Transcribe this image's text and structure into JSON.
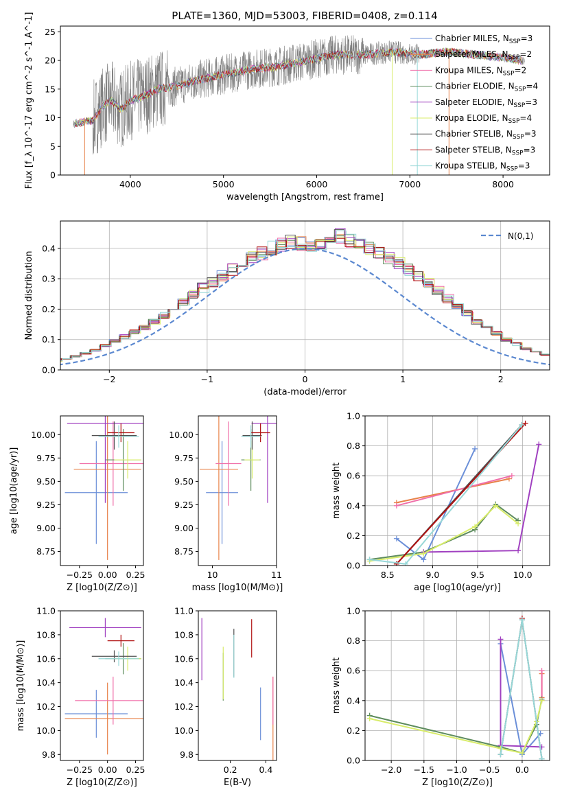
{
  "title": "PLATE=1360, MJD=53003, FIBERID=0408, z=0.114",
  "colors": {
    "chabrier_miles": "#6b8fd8",
    "salpeter_miles": "#e8824a",
    "kroupa_miles": "#f06ea9",
    "chabrier_elodie": "#5e8c5e",
    "salpeter_elodie": "#a040c0",
    "kroupa_elodie": "#d8ec6a",
    "chabrier_stelib": "#505050",
    "salpeter_stelib": "#b01010",
    "kroupa_stelib": "#98d8d8",
    "data": "#808080",
    "normal": "#5b88d0"
  },
  "chart_data": [
    {
      "id": "spectrum",
      "type": "line",
      "xlabel": "wavelength [Angstrom, rest frame]",
      "ylabel": "Flux [f_λ 10^-17 erg cm^-2 s^-1 A^-1]",
      "xlim": [
        3250,
        8500
      ],
      "ylim": [
        0,
        26
      ],
      "xticks": [
        4000,
        5000,
        6000,
        7000,
        8000
      ],
      "yticks": [
        0,
        5,
        10,
        15,
        20,
        25
      ],
      "legend_position": "top-right",
      "continuum": {
        "x": [
          3400,
          3600,
          3700,
          3800,
          3900,
          4000,
          4100,
          4300,
          4500,
          4700,
          5000,
          5300,
          5600,
          5900,
          6200,
          6500,
          6800,
          7100,
          7400,
          7700,
          8000,
          8200
        ],
        "y": [
          9,
          9.5,
          12,
          13,
          11.5,
          13,
          13.5,
          15,
          15.5,
          16.5,
          17.5,
          18.5,
          19,
          20,
          21,
          21,
          21.5,
          21,
          21.5,
          21,
          20.5,
          20
        ]
      },
      "series": [
        {
          "name": "Chabrier MILES, N_SSP=3",
          "label_main": "Chabrier MILES, N",
          "label_sub": "SSP",
          "label_tail": "=3",
          "color": "#6b8fd8"
        },
        {
          "name": "Salpeter MILES, N_SSP=2",
          "label_main": "Salpeter MILES, N",
          "label_sub": "SSP",
          "label_tail": "=2",
          "color": "#e8824a"
        },
        {
          "name": "Kroupa MILES, N_SSP=2",
          "label_main": "Kroupa MILES, N",
          "label_sub": "SSP",
          "label_tail": "=2",
          "color": "#f06ea9"
        },
        {
          "name": "Chabrier ELODIE, N_SSP=4",
          "label_main": "Chabrier ELODIE, N",
          "label_sub": "SSP",
          "label_tail": "=4",
          "color": "#5e8c5e"
        },
        {
          "name": "Salpeter ELODIE, N_SSP=3",
          "label_main": "Salpeter ELODIE, N",
          "label_sub": "SSP",
          "label_tail": "=3",
          "color": "#a040c0"
        },
        {
          "name": "Kroupa ELODIE, N_SSP=4",
          "label_main": "Kroupa ELODIE, N",
          "label_sub": "SSP",
          "label_tail": "=4",
          "color": "#d8ec6a"
        },
        {
          "name": "Chabrier STELIB, N_SSP=3",
          "label_main": "Chabrier STELIB, N",
          "label_sub": "SSP",
          "label_tail": "=3",
          "color": "#505050"
        },
        {
          "name": "Salpeter STELIB, N_SSP=3",
          "label_main": "Salpeter STELIB, N",
          "label_sub": "SSP",
          "label_tail": "=3",
          "color": "#b01010"
        },
        {
          "name": "Kroupa STELIB, N_SSP=3",
          "label_main": "Kroupa STELIB, N",
          "label_sub": "SSP",
          "label_tail": "=3",
          "color": "#98d8d8"
        }
      ]
    },
    {
      "id": "residuals",
      "type": "area",
      "xlabel": "(data-model)/error",
      "ylabel": "Normed distribution",
      "xlim": [
        -2.5,
        2.5
      ],
      "ylim": [
        0,
        0.49
      ],
      "xticks": [
        -2,
        -1,
        0,
        1,
        2
      ],
      "yticks": [
        0.0,
        0.1,
        0.2,
        0.3,
        0.4
      ],
      "grid": true,
      "legend_position": "top-right",
      "legend": "N(0,1)",
      "bin_width": 0.1,
      "histogram_heights": [
        0.015,
        0.02,
        0.025,
        0.03,
        0.035,
        0.045,
        0.055,
        0.065,
        0.08,
        0.095,
        0.11,
        0.125,
        0.14,
        0.16,
        0.18,
        0.2,
        0.225,
        0.25,
        0.27,
        0.29,
        0.31,
        0.33,
        0.35,
        0.37,
        0.385,
        0.4,
        0.41,
        0.42,
        0.415,
        0.41,
        0.42,
        0.43,
        0.44,
        0.425,
        0.41,
        0.4,
        0.385,
        0.37,
        0.35,
        0.33,
        0.31,
        0.285,
        0.26,
        0.235,
        0.21,
        0.185,
        0.16,
        0.14,
        0.12,
        0.1,
        0.085,
        0.07,
        0.06,
        0.05,
        0.04,
        0.032,
        0.025,
        0.02
      ]
    },
    {
      "id": "age_vs_Z",
      "type": "scatter",
      "xlabel": "Z [log10(Z/Z⊙)]",
      "ylabel": "age [log10(age/yr)]",
      "xlim": [
        -0.42,
        0.32
      ],
      "ylim": [
        8.6,
        10.2
      ],
      "xticks": [
        -0.25,
        0.0,
        0.25
      ],
      "yticks": [
        8.75,
        9.0,
        9.25,
        9.5,
        9.75,
        10.0
      ],
      "points": [
        {
          "x": -0.1,
          "xerr": 0.28,
          "y": 9.38,
          "yerr": 0.55,
          "color": "#6b8fd8"
        },
        {
          "x": 0.0,
          "xerr": 0.3,
          "y": 9.63,
          "yerr": 0.97,
          "color": "#e8824a"
        },
        {
          "x": 0.05,
          "xerr": 0.3,
          "y": 9.69,
          "yerr": 0.45,
          "color": "#f06ea9"
        },
        {
          "x": 0.14,
          "xerr": 0.16,
          "y": 9.73,
          "yerr": 0.33,
          "color": "#5e8c5e"
        },
        {
          "x": -0.02,
          "xerr": 0.34,
          "y": 10.12,
          "yerr": 0.85,
          "color": "#a040c0"
        },
        {
          "x": 0.18,
          "xerr": 0.12,
          "y": 9.73,
          "yerr": 0.2,
          "color": "#d8ec6a"
        },
        {
          "x": 0.06,
          "xerr": 0.2,
          "y": 9.99,
          "yerr": 0.15,
          "color": "#505050"
        },
        {
          "x": 0.12,
          "xerr": 0.12,
          "y": 10.02,
          "yerr": 0.1,
          "color": "#b01010"
        },
        {
          "x": 0.1,
          "xerr": 0.18,
          "y": 9.98,
          "yerr": 0.12,
          "color": "#98d8d8"
        }
      ]
    },
    {
      "id": "age_vs_mass",
      "type": "scatter",
      "xlabel": "mass [log10(M/M⊙)]",
      "ylabel": "",
      "xlim": [
        9.78,
        11.0
      ],
      "ylim": [
        8.6,
        10.2
      ],
      "xticks": [
        10,
        11
      ],
      "yticks": [
        8.75,
        9.0,
        9.25,
        9.5,
        9.75,
        10.0
      ],
      "points": [
        {
          "x": 10.15,
          "xerr": 0.25,
          "y": 9.38,
          "yerr": 0.55,
          "color": "#6b8fd8"
        },
        {
          "x": 10.1,
          "xerr": 0.3,
          "y": 9.63,
          "yerr": 0.97,
          "color": "#e8824a"
        },
        {
          "x": 10.25,
          "xerr": 0.2,
          "y": 9.69,
          "yerr": 0.45,
          "color": "#f06ea9"
        },
        {
          "x": 10.6,
          "xerr": 0.15,
          "y": 9.73,
          "yerr": 0.33,
          "color": "#5e8c5e"
        },
        {
          "x": 10.86,
          "xerr": 0.25,
          "y": 10.12,
          "yerr": 0.85,
          "color": "#a040c0"
        },
        {
          "x": 10.62,
          "xerr": 0.12,
          "y": 9.73,
          "yerr": 0.2,
          "color": "#d8ec6a"
        },
        {
          "x": 10.62,
          "xerr": 0.15,
          "y": 9.99,
          "yerr": 0.15,
          "color": "#505050"
        },
        {
          "x": 10.75,
          "xerr": 0.15,
          "y": 10.02,
          "yerr": 0.1,
          "color": "#b01010"
        },
        {
          "x": 10.6,
          "xerr": 0.15,
          "y": 9.98,
          "yerr": 0.12,
          "color": "#98d8d8"
        }
      ]
    },
    {
      "id": "weight_vs_age",
      "type": "line",
      "xlabel": "age [log10(age/yr)]",
      "ylabel": "mass weight",
      "xlim": [
        8.25,
        10.3
      ],
      "ylim": [
        0,
        1
      ],
      "xticks": [
        8.5,
        9.0,
        9.5,
        10.0
      ],
      "yticks": [
        0.0,
        0.2,
        0.4,
        0.6,
        0.8,
        1.0
      ],
      "grid": true,
      "series": [
        {
          "color": "#6b8fd8",
          "x": [
            8.6,
            8.9,
            9.47
          ],
          "y": [
            0.18,
            0.04,
            0.78
          ]
        },
        {
          "color": "#e8824a",
          "x": [
            8.6,
            9.85
          ],
          "y": [
            0.42,
            0.58
          ]
        },
        {
          "color": "#f06ea9",
          "x": [
            8.6,
            9.88
          ],
          "y": [
            0.4,
            0.6
          ]
        },
        {
          "color": "#5e8c5e",
          "x": [
            8.3,
            8.9,
            9.47,
            9.7,
            9.95
          ],
          "y": [
            0.04,
            0.09,
            0.24,
            0.41,
            0.3
          ]
        },
        {
          "color": "#a040c0",
          "x": [
            8.9,
            9.95,
            10.18
          ],
          "y": [
            0.09,
            0.1,
            0.81
          ]
        },
        {
          "color": "#d8ec6a",
          "x": [
            8.3,
            8.9,
            9.47,
            9.7,
            9.95
          ],
          "y": [
            0.03,
            0.08,
            0.26,
            0.4,
            0.28
          ]
        },
        {
          "color": "#505050",
          "x": [
            8.6,
            9.99
          ],
          "y": [
            0.01,
            0.94
          ]
        },
        {
          "color": "#b01010",
          "x": [
            8.6,
            10.03
          ],
          "y": [
            0.01,
            0.95
          ]
        },
        {
          "color": "#98d8d8",
          "x": [
            8.3,
            8.7,
            9.99
          ],
          "y": [
            0.04,
            0.01,
            0.94
          ]
        }
      ]
    },
    {
      "id": "mass_vs_Z",
      "type": "scatter",
      "xlabel": "Z [log10(Z/Z⊙)]",
      "ylabel": "mass [log10(M/M⊙)]",
      "xlim": [
        -0.42,
        0.32
      ],
      "ylim": [
        9.75,
        11.0
      ],
      "xticks": [
        -0.25,
        0.0,
        0.25
      ],
      "yticks": [
        9.8,
        10.0,
        10.2,
        10.4,
        10.6,
        10.8,
        11.0
      ],
      "points": [
        {
          "x": -0.1,
          "xerr": 0.28,
          "y": 10.14,
          "yerr": 0.2,
          "color": "#6b8fd8"
        },
        {
          "x": 0.0,
          "xerr": 0.38,
          "y": 10.1,
          "yerr": 0.3,
          "color": "#e8824a"
        },
        {
          "x": 0.05,
          "xerr": 0.34,
          "y": 10.25,
          "yerr": 0.2,
          "color": "#f06ea9"
        },
        {
          "x": 0.14,
          "xerr": 0.16,
          "y": 10.6,
          "yerr": 0.13,
          "color": "#5e8c5e"
        },
        {
          "x": -0.02,
          "xerr": 0.32,
          "y": 10.86,
          "yerr": 0.08,
          "color": "#a040c0"
        },
        {
          "x": 0.18,
          "xerr": 0.12,
          "y": 10.6,
          "yerr": 0.1,
          "color": "#d8ec6a"
        },
        {
          "x": 0.06,
          "xerr": 0.2,
          "y": 10.62,
          "yerr": 0.05,
          "color": "#505050"
        },
        {
          "x": 0.12,
          "xerr": 0.12,
          "y": 10.75,
          "yerr": 0.05,
          "color": "#b01010"
        },
        {
          "x": 0.1,
          "xerr": 0.18,
          "y": 10.6,
          "yerr": 0.06,
          "color": "#98d8d8"
        }
      ]
    },
    {
      "id": "mass_vs_ebv",
      "type": "scatter",
      "xlabel": "E(B-V)",
      "ylabel": "",
      "xlim": [
        0.02,
        0.46
      ],
      "ylim": [
        9.75,
        11.0
      ],
      "xticks": [
        0.2,
        0.4
      ],
      "yticks": [
        9.8,
        10.0,
        10.2,
        10.4,
        10.6,
        10.8,
        11.0
      ],
      "points": [
        {
          "x": 0.37,
          "y": 10.14,
          "yerr": 0.22,
          "color": "#6b8fd8"
        },
        {
          "x": 0.44,
          "y": 10.1,
          "yerr": 0.35,
          "color": "#e8824a"
        },
        {
          "x": 0.44,
          "y": 10.25,
          "yerr": 0.2,
          "color": "#f06ea9"
        },
        {
          "x": 0.16,
          "y": 10.45,
          "yerr": 0.2,
          "color": "#5e8c5e"
        },
        {
          "x": 0.04,
          "y": 10.68,
          "yerr": 0.26,
          "color": "#a040c0"
        },
        {
          "x": 0.16,
          "y": 10.48,
          "yerr": 0.22,
          "color": "#d8ec6a"
        },
        {
          "x": 0.22,
          "y": 10.65,
          "yerr": 0.2,
          "color": "#505050"
        },
        {
          "x": 0.32,
          "y": 10.77,
          "yerr": 0.16,
          "color": "#b01010"
        },
        {
          "x": 0.22,
          "y": 10.62,
          "yerr": 0.18,
          "color": "#98d8d8"
        }
      ]
    },
    {
      "id": "weight_vs_Z",
      "type": "line",
      "xlabel": "Z [log10(Z/Z⊙)]",
      "ylabel": "mass weight",
      "xlim": [
        -2.4,
        0.42
      ],
      "ylim": [
        0,
        1
      ],
      "xticks": [
        -2.0,
        -1.5,
        -1.0,
        -0.5,
        0.0
      ],
      "yticks": [
        0.0,
        0.2,
        0.4,
        0.6,
        0.8,
        1.0
      ],
      "grid": true,
      "series": [
        {
          "color": "#6b8fd8",
          "x": [
            -0.33,
            0.0,
            0.28
          ],
          "y": [
            0.78,
            0.04,
            0.18
          ]
        },
        {
          "color": "#e8824a",
          "x": [
            0.3,
            0.3
          ],
          "y": [
            0.58,
            0.42
          ]
        },
        {
          "color": "#f06ea9",
          "x": [
            0.3,
            0.3
          ],
          "y": [
            0.6,
            0.4
          ]
        },
        {
          "color": "#5e8c5e",
          "x": [
            -2.33,
            -0.33,
            0.0,
            0.22,
            0.3
          ],
          "y": [
            0.3,
            0.09,
            0.05,
            0.24,
            0.41
          ]
        },
        {
          "color": "#a040c0",
          "x": [
            -0.33,
            -0.33,
            0.3
          ],
          "y": [
            0.81,
            0.1,
            0.09
          ]
        },
        {
          "color": "#d8ec6a",
          "x": [
            -2.33,
            -0.33,
            0.0,
            0.22,
            0.3
          ],
          "y": [
            0.28,
            0.08,
            0.05,
            0.26,
            0.4
          ]
        },
        {
          "color": "#505050",
          "x": [
            -0.33,
            0.0,
            0.3
          ],
          "y": [
            0.04,
            0.94,
            0.01
          ]
        },
        {
          "color": "#b01010",
          "x": [
            0.0
          ],
          "y": [
            0.95
          ]
        },
        {
          "color": "#98d8d8",
          "x": [
            -0.33,
            0.0,
            0.3
          ],
          "y": [
            0.04,
            0.94,
            0.01
          ]
        }
      ]
    }
  ]
}
